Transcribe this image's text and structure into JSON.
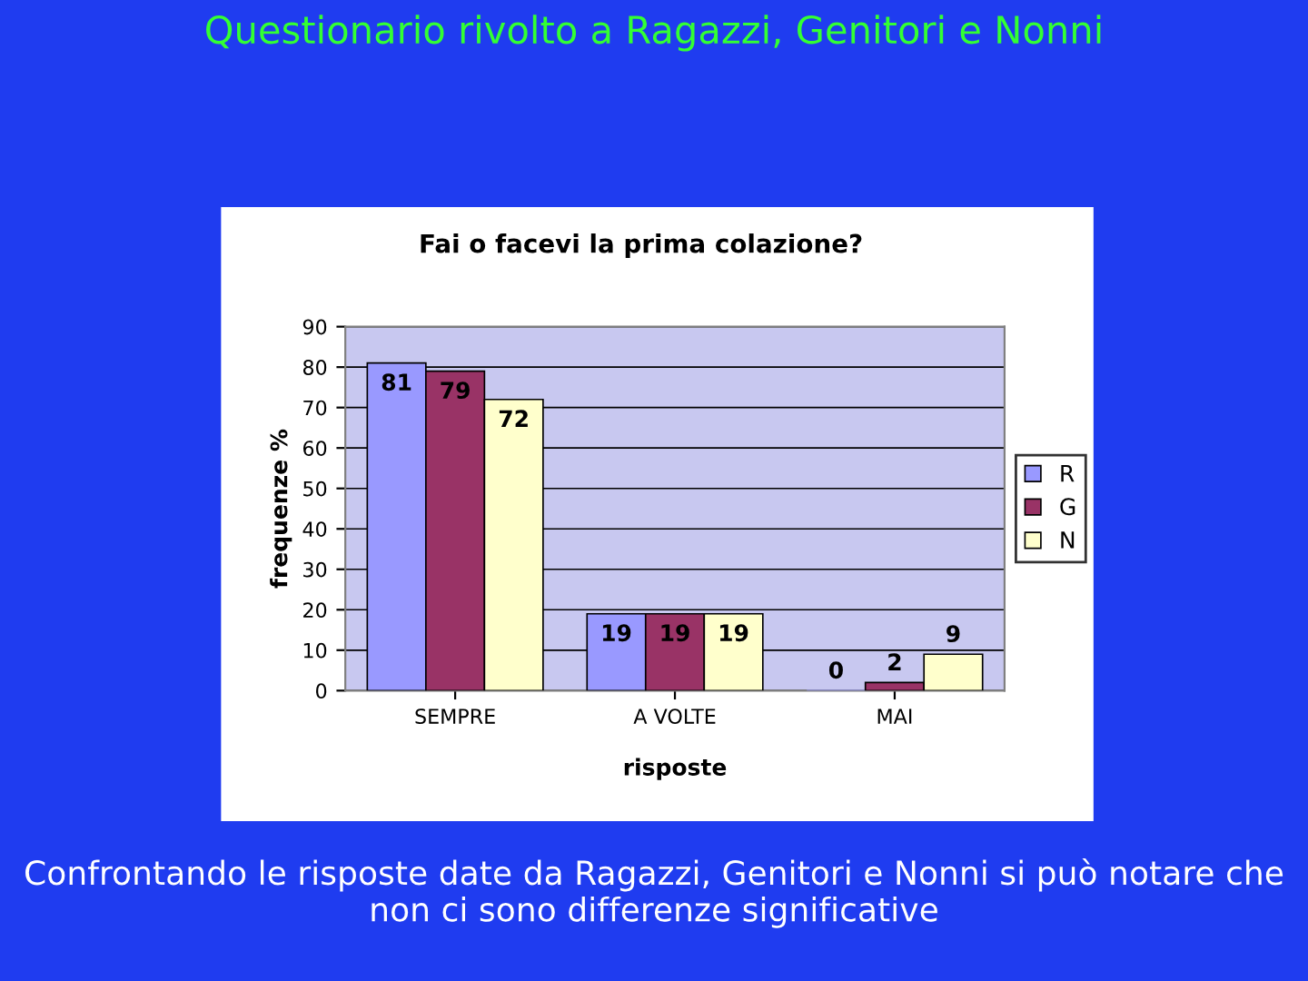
{
  "chart_data": {
    "type": "bar",
    "title": "Questionario rivolto a Ragazzi, Genitori e Nonni",
    "subtitle": "Fai o facevi la prima colazione?",
    "xlabel": "risposte",
    "ylabel": "frequenze %",
    "categories": [
      "SEMPRE",
      "A VOLTE",
      "MAI"
    ],
    "series": [
      {
        "name": "R",
        "color": "#9999ff",
        "values": [
          81,
          19,
          0
        ]
      },
      {
        "name": "G",
        "color": "#993366",
        "values": [
          79,
          19,
          2
        ]
      },
      {
        "name": "N",
        "color": "#ffffcc",
        "values": [
          72,
          19,
          9
        ]
      }
    ],
    "ylim": [
      0,
      90
    ],
    "yticks": [
      0,
      10,
      20,
      30,
      40,
      50,
      60,
      70,
      80,
      90
    ],
    "grid": "y",
    "legend": "right",
    "data_labels": true,
    "annotations": [
      "Confrontando le risposte date da Ragazzi, Genitori e Nonni si può notare che non ci sono differenze significative"
    ]
  }
}
